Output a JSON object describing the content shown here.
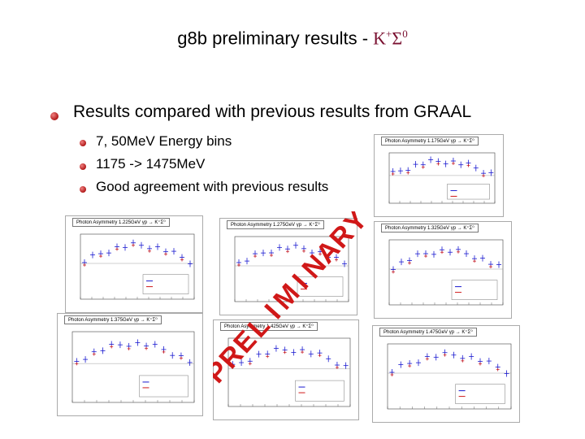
{
  "title": {
    "text": "g8b preliminary results - ",
    "greek": "K",
    "sup1": "+",
    "greek2": "Σ",
    "sup2": "0"
  },
  "bullet": "Results compared with previous results from GRAAL",
  "subbullets": [
    "7, 50MeV Energy bins",
    "1175 -> 1475MeV",
    "Good agreement with previous results"
  ],
  "watermark": "PRELIMINARY",
  "plots": [
    {
      "title": "Photon Asymmetry 1.175GeV  γp → K⁺Σ⁰"
    },
    {
      "title": "Photon Asymmetry 1.225GeV  γp → K⁺Σ⁰"
    },
    {
      "title": "Photon Asymmetry 1.275GeV  γp → K⁺Σ⁰"
    },
    {
      "title": "Photon Asymmetry 1.325GeV  γp → K⁺Σ⁰"
    },
    {
      "title": "Photon Asymmetry 1.375GeV  γp → K⁺Σ⁰"
    },
    {
      "title": "Photon Asymmetry 1.425GeV  γp → K⁺Σ⁰"
    },
    {
      "title": "Photon Asymmetry 1.475GeV  γp → K⁺Σ⁰"
    }
  ],
  "colors": {
    "title_greek": "#7a1030",
    "bullet": "#c02020",
    "watermark": "#d01818",
    "series_clas": "#1a1ad0",
    "series_graal": "#d01818"
  }
}
